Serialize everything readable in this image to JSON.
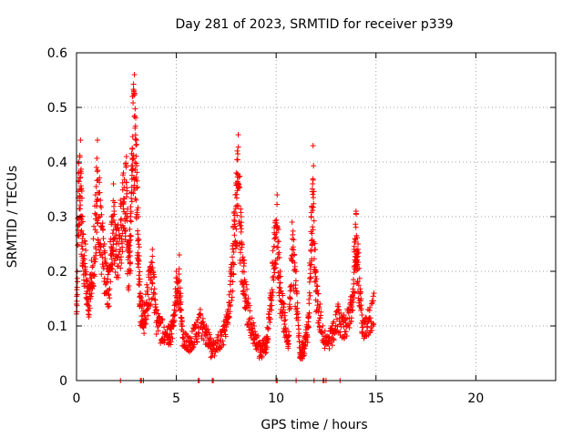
{
  "chart_data": {
    "type": "scatter",
    "title": "Day 281 of 2023, SRMTID for receiver p339",
    "xlabel": "GPS time / hours",
    "ylabel": "SRMTID / TECUs",
    "xlim": [
      0,
      24
    ],
    "ylim": [
      0,
      0.6
    ],
    "xticks": [
      0,
      5,
      10,
      15,
      20
    ],
    "xtick_labels": [
      "0",
      "5",
      "10",
      "15",
      "20"
    ],
    "yticks": [
      0,
      0.1,
      0.2,
      0.3,
      0.4,
      0.5,
      0.6
    ],
    "ytick_labels": [
      "0",
      "0.1",
      "0.2",
      "0.3",
      "0.4",
      "0.5",
      "0.6"
    ],
    "grid": true,
    "marker": "+",
    "series": [
      {
        "name": "SRMTID",
        "color": "#ff0000",
        "anchors": [
          [
            0.0,
            0.14
          ],
          [
            0.1,
            0.4
          ],
          [
            0.2,
            0.44
          ],
          [
            0.3,
            0.3
          ],
          [
            0.45,
            0.25
          ],
          [
            0.6,
            0.17
          ],
          [
            0.75,
            0.22
          ],
          [
            0.95,
            0.34
          ],
          [
            1.05,
            0.44
          ],
          [
            1.2,
            0.33
          ],
          [
            1.4,
            0.25
          ],
          [
            1.6,
            0.2
          ],
          [
            1.75,
            0.3
          ],
          [
            1.85,
            0.36
          ],
          [
            2.0,
            0.28
          ],
          [
            2.2,
            0.33
          ],
          [
            2.35,
            0.38
          ],
          [
            2.5,
            0.41
          ],
          [
            2.6,
            0.25
          ],
          [
            2.7,
            0.3
          ],
          [
            2.8,
            0.52
          ],
          [
            2.9,
            0.56
          ],
          [
            3.0,
            0.44
          ],
          [
            3.1,
            0.3
          ],
          [
            3.2,
            0.16
          ],
          [
            3.4,
            0.14
          ],
          [
            3.6,
            0.2
          ],
          [
            3.8,
            0.24
          ],
          [
            4.0,
            0.13
          ],
          [
            4.3,
            0.11
          ],
          [
            4.6,
            0.1
          ],
          [
            4.8,
            0.11
          ],
          [
            5.0,
            0.2
          ],
          [
            5.15,
            0.23
          ],
          [
            5.3,
            0.1
          ],
          [
            5.6,
            0.08
          ],
          [
            5.9,
            0.1
          ],
          [
            6.2,
            0.13
          ],
          [
            6.5,
            0.1
          ],
          [
            6.8,
            0.07
          ],
          [
            7.2,
            0.09
          ],
          [
            7.5,
            0.12
          ],
          [
            7.7,
            0.2
          ],
          [
            7.85,
            0.28
          ],
          [
            8.0,
            0.38
          ],
          [
            8.1,
            0.45
          ],
          [
            8.25,
            0.3
          ],
          [
            8.4,
            0.22
          ],
          [
            8.6,
            0.15
          ],
          [
            8.9,
            0.1
          ],
          [
            9.2,
            0.07
          ],
          [
            9.5,
            0.08
          ],
          [
            9.7,
            0.16
          ],
          [
            9.9,
            0.28
          ],
          [
            10.05,
            0.34
          ],
          [
            10.2,
            0.2
          ],
          [
            10.4,
            0.14
          ],
          [
            10.6,
            0.08
          ],
          [
            10.8,
            0.29
          ],
          [
            11.0,
            0.2
          ],
          [
            11.2,
            0.06
          ],
          [
            11.4,
            0.08
          ],
          [
            11.6,
            0.12
          ],
          [
            11.75,
            0.3
          ],
          [
            11.85,
            0.43
          ],
          [
            12.0,
            0.2
          ],
          [
            12.2,
            0.14
          ],
          [
            12.5,
            0.08
          ],
          [
            12.8,
            0.1
          ],
          [
            13.1,
            0.14
          ],
          [
            13.4,
            0.12
          ],
          [
            13.7,
            0.14
          ],
          [
            13.9,
            0.24
          ],
          [
            14.0,
            0.31
          ],
          [
            14.1,
            0.25
          ],
          [
            14.3,
            0.12
          ],
          [
            14.6,
            0.13
          ],
          [
            14.9,
            0.16
          ]
        ],
        "zero_values_x": [
          2.2,
          3.2,
          3.25,
          3.35,
          6.1,
          6.15,
          6.8,
          6.85,
          10.0,
          10.05,
          11.0,
          11.9,
          12.35,
          12.4,
          12.5,
          13.2
        ]
      }
    ]
  }
}
